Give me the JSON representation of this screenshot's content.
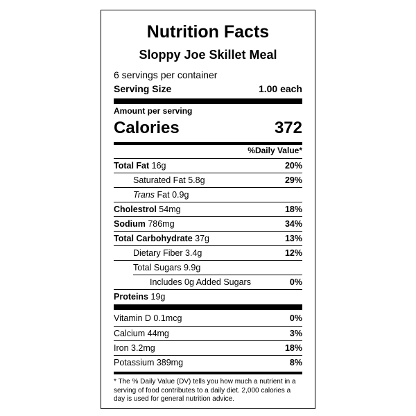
{
  "label": {
    "title": "Nutrition Facts",
    "product_name": "Sloppy Joe Skillet Meal",
    "servings_per_container": "6 servings per container",
    "serving_size_label": "Serving Size",
    "serving_size_value": "1.00 each",
    "amount_per_serving": "Amount per serving",
    "calories_label": "Calories",
    "calories_value": "372",
    "daily_value_header": "%Daily Value*",
    "nutrients": [
      {
        "name": "Total Fat",
        "amount": "16g",
        "dv": "20%"
      },
      {
        "name": "Saturated Fat",
        "amount": "5.8g",
        "dv": "29%"
      },
      {
        "name": "Trans",
        "name_suffix": "Fat",
        "amount": "0.9g",
        "dv": ""
      },
      {
        "name": "Cholestrol",
        "amount": "54mg",
        "dv": "18%"
      },
      {
        "name": "Sodium",
        "amount": "786mg",
        "dv": "34%"
      },
      {
        "name": "Total Carbohydrate",
        "amount": "37g",
        "dv": "13%"
      },
      {
        "name": "Dietary Fiber",
        "amount": "3.4g",
        "dv": "12%"
      },
      {
        "name": "Total Sugars",
        "amount": "9.9g",
        "dv": ""
      },
      {
        "name": "Includes 0g Added Sugars",
        "amount": "",
        "dv": "0%"
      },
      {
        "name": "Proteins",
        "amount": "19g",
        "dv": ""
      }
    ],
    "vitamins": [
      {
        "name": "Vitamin D 0.1mcg",
        "dv": "0%"
      },
      {
        "name": "Calcium 44mg",
        "dv": "3%"
      },
      {
        "name": "Iron 3.2mg",
        "dv": "18%"
      },
      {
        "name": "Potassium 389mg",
        "dv": "8%"
      }
    ],
    "footnote": "* The % Daily Value (DV) tells you how much a nutrient in a serving of food contributes to a daily diet. 2,000 calories a day is used for general nutrition advice."
  }
}
